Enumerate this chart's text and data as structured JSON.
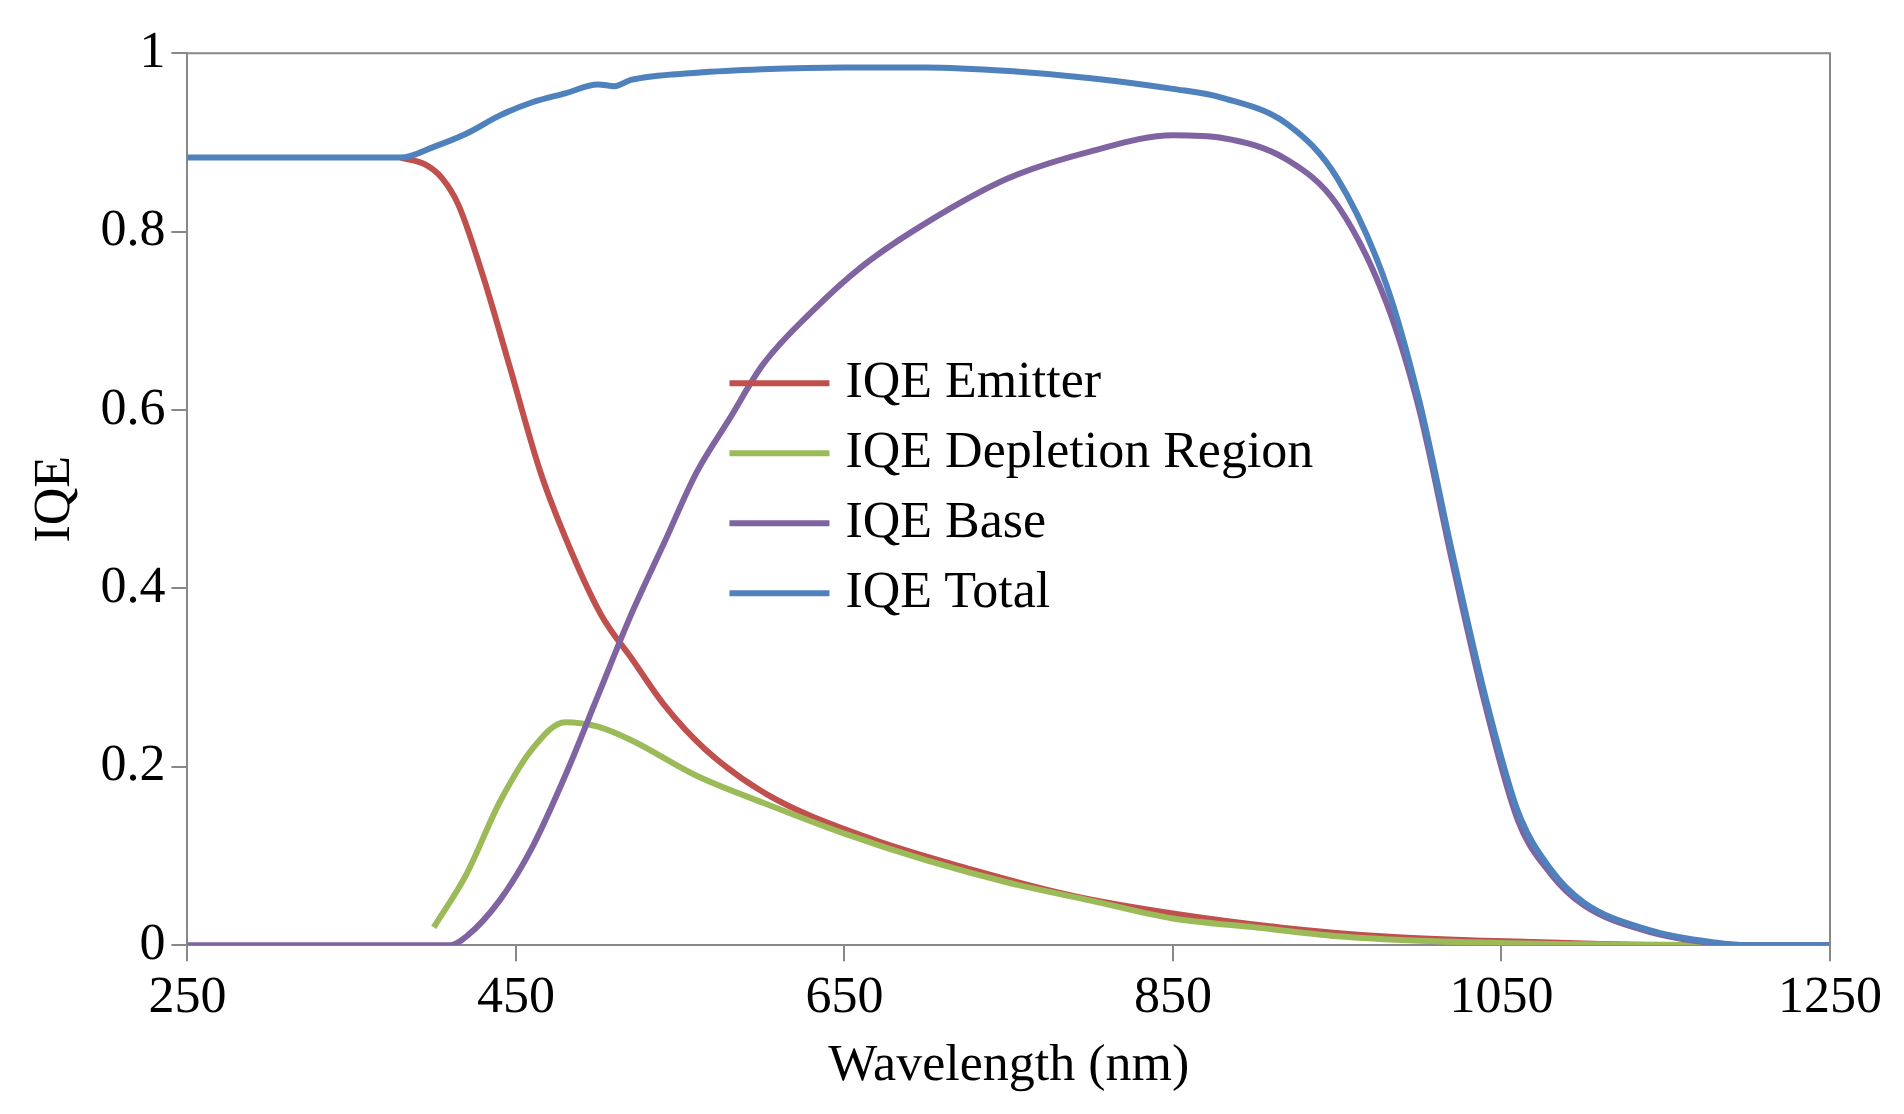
{
  "chart_data": {
    "type": "line",
    "xlabel": "Wavelength (nm)",
    "ylabel": "IQE",
    "xlim": [
      250,
      1250
    ],
    "xticks": [
      250,
      450,
      650,
      850,
      1050,
      1250
    ],
    "ylim": [
      0,
      1
    ],
    "yticks": [
      0,
      {
        "value": 0.2,
        "label": "0.2"
      },
      {
        "value": 0.4,
        "label": "0.4"
      },
      {
        "value": 0.6,
        "label": "0.6"
      },
      {
        "value": 0.8,
        "label": "0.8"
      },
      1
    ],
    "grid": false,
    "legend": "center",
    "marker": "none",
    "line_style": "solid",
    "series": [
      {
        "name": "IQE Emitter",
        "color": "#c0504d",
        "x": [
          380,
          395,
          405,
          415,
          430,
          446,
          465,
          484,
          502,
          521,
          540,
          565,
          602,
          665,
          727,
          790,
          852,
          915,
          977,
          1040,
          1100,
          1150,
          1250
        ],
        "values": [
          0.883,
          0.875,
          0.86,
          0.83,
          0.75,
          0.65,
          0.53,
          0.44,
          0.37,
          0.32,
          0.27,
          0.22,
          0.17,
          0.12,
          0.085,
          0.055,
          0.035,
          0.02,
          0.01,
          0.005,
          0.002,
          0,
          0
        ]
      },
      {
        "name": "IQE Depletion Region",
        "color": "#9bbb59",
        "x": [
          400,
          420,
          440,
          460,
          480,
          500,
          520,
          560,
          600,
          650,
          700,
          750,
          800,
          850,
          900,
          950,
          1000,
          1100,
          1200,
          1250
        ],
        "values": [
          0.02,
          0.08,
          0.16,
          0.22,
          0.25,
          0.245,
          0.23,
          0.19,
          0.16,
          0.125,
          0.095,
          0.07,
          0.05,
          0.03,
          0.02,
          0.01,
          0.005,
          0.001,
          0,
          0
        ]
      },
      {
        "name": "IQE Base",
        "color": "#8064a2",
        "x": [
          250,
          300,
          350,
          410,
          420,
          440,
          460,
          480,
          500,
          520,
          540,
          560,
          580,
          600,
          630,
          660,
          700,
          750,
          800,
          850,
          880,
          920,
          950,
          980,
          1000,
          1020,
          1040,
          1060,
          1080,
          1100,
          1140,
          1180,
          1200,
          1250
        ],
        "values": [
          0,
          0,
          0,
          0,
          0.01,
          0.05,
          0.11,
          0.19,
          0.28,
          0.37,
          0.45,
          0.53,
          0.59,
          0.65,
          0.71,
          0.76,
          0.81,
          0.86,
          0.89,
          0.908,
          0.905,
          0.88,
          0.83,
          0.72,
          0.6,
          0.43,
          0.27,
          0.14,
          0.08,
          0.045,
          0.015,
          0.002,
          0,
          0
        ]
      },
      {
        "name": "IQE Total",
        "color": "#4f81bd",
        "x": [
          250,
          300,
          350,
          380,
          400,
          420,
          440,
          460,
          480,
          500,
          510,
          520,
          560,
          600,
          650,
          700,
          750,
          800,
          850,
          880,
          920,
          950,
          980,
          1000,
          1020,
          1040,
          1060,
          1080,
          1100,
          1140,
          1180,
          1200,
          1250
        ],
        "values": [
          0.883,
          0.883,
          0.883,
          0.883,
          0.895,
          0.91,
          0.93,
          0.945,
          0.955,
          0.965,
          0.963,
          0.97,
          0.978,
          0.982,
          0.984,
          0.984,
          0.98,
          0.972,
          0.96,
          0.95,
          0.92,
          0.86,
          0.74,
          0.61,
          0.44,
          0.28,
          0.15,
          0.085,
          0.048,
          0.017,
          0.003,
          0,
          0
        ]
      }
    ]
  }
}
